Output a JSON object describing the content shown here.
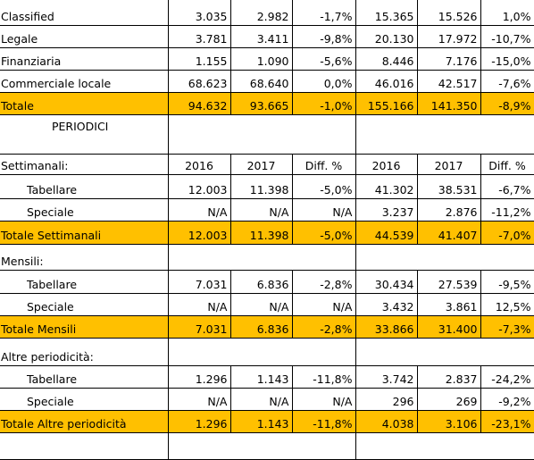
{
  "table": {
    "rows": [
      [
        "Classified",
        "3.035",
        "2.982",
        "-1,7%",
        "15.365",
        "15.526",
        "1,0%"
      ],
      [
        "Legale",
        "3.781",
        "3.411",
        "-9,8%",
        "20.130",
        "17.972",
        "-10,7%"
      ],
      [
        "Finanziaria",
        "1.155",
        "1.090",
        "-5,6%",
        "8.446",
        "7.176",
        "-15,0%"
      ],
      [
        "Commerciale locale",
        "68.623",
        "68.640",
        "0,0%",
        "46.016",
        "42.517",
        "-7,6%"
      ],
      [
        "Totale",
        "94.632",
        "93.665",
        "-1,0%",
        "155.166",
        "141.350",
        "-8,9%"
      ],
      [
        "PERIODICI"
      ],
      [
        "Settimanali:",
        "2016",
        "2017",
        "Diff. %",
        "2016",
        "2017",
        "Diff. %"
      ],
      [
        "Tabellare",
        "12.003",
        "11.398",
        "-5,0%",
        "41.302",
        "38.531",
        "-6,7%"
      ],
      [
        "Speciale",
        "N/A",
        "N/A",
        "N/A",
        "3.237",
        "2.876",
        "-11,2%"
      ],
      [
        "Totale Settimanali",
        "12.003",
        "11.398",
        "-5,0%",
        "44.539",
        "41.407",
        "-7,0%"
      ],
      [
        "Mensili:"
      ],
      [
        "Tabellare",
        "7.031",
        "6.836",
        "-2,8%",
        "30.434",
        "27.539",
        "-9,5%"
      ],
      [
        "Speciale",
        "N/A",
        "N/A",
        "N/A",
        "3.432",
        "3.861",
        "12,5%"
      ],
      [
        "Totale Mensili",
        "7.031",
        "6.836",
        "-2,8%",
        "33.866",
        "31.400",
        "-7,3%"
      ],
      [
        "Altre periodicità:"
      ],
      [
        "Tabellare",
        "1.296",
        "1.143",
        "-11,8%",
        "3.742",
        "2.837",
        "-24,2%"
      ],
      [
        "Speciale",
        "N/A",
        "N/A",
        "N/A",
        "296",
        "269",
        "-9,2%"
      ],
      [
        "Totale Altre periodicità",
        "1.296",
        "1.143",
        "-11,8%",
        "4.038",
        "3.106",
        "-23,1%"
      ]
    ]
  }
}
